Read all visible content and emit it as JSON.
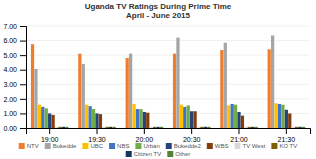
{
  "chart_data": {
    "type": "bar",
    "title": "Uganda TV Ratings During Prime Time\nApril - June 2015",
    "categories": [
      "19:00",
      "19:30",
      "20:00",
      "20:30",
      "21:00",
      "21:30"
    ],
    "series": [
      {
        "name": "NTV",
        "color": "#ed7d31",
        "values": [
          5.75,
          5.1,
          4.8,
          5.1,
          5.35,
          5.4
        ]
      },
      {
        "name": "Bukedde",
        "color": "#a5a5a5",
        "values": [
          4.05,
          4.4,
          5.1,
          6.2,
          5.85,
          6.35
        ]
      },
      {
        "name": "UBC",
        "color": "#ffc000",
        "values": [
          1.6,
          1.6,
          1.65,
          1.6,
          1.55,
          1.7
        ]
      },
      {
        "name": "NBS",
        "color": "#4472c4",
        "values": [
          1.45,
          1.5,
          1.3,
          1.45,
          1.65,
          1.65
        ]
      },
      {
        "name": "Urban",
        "color": "#70ad47",
        "values": [
          1.35,
          1.3,
          1.3,
          1.55,
          1.6,
          1.6
        ]
      },
      {
        "name": "Bukedde2",
        "color": "#264478",
        "values": [
          1.0,
          1.0,
          1.1,
          1.15,
          1.1,
          1.25
        ]
      },
      {
        "name": "WBS",
        "color": "#843c0c",
        "values": [
          0.9,
          0.95,
          1.05,
          1.15,
          0.85,
          1.0
        ]
      },
      {
        "name": "TV West",
        "color": "#d9d9d9",
        "values": [
          0.08,
          0.08,
          0.08,
          0.08,
          0.08,
          0.08
        ]
      },
      {
        "name": "KO TV",
        "color": "#806000",
        "values": [
          0.08,
          0.08,
          0.08,
          0.08,
          0.08,
          0.08
        ]
      },
      {
        "name": "Citizen TV",
        "color": "#17375e",
        "values": [
          0.08,
          0.08,
          0.08,
          0.08,
          0.08,
          0.08
        ]
      },
      {
        "name": "Other",
        "color": "#548235",
        "values": [
          0.08,
          0.08,
          0.08,
          0.08,
          0.08,
          0.08
        ]
      }
    ],
    "ylim": [
      0.0,
      7.0
    ],
    "yticks": [
      {
        "value": 0.0,
        "label": "0.00"
      },
      {
        "value": 1.0,
        "label": "1.00"
      },
      {
        "value": 2.0,
        "label": "2.00"
      },
      {
        "value": 3.0,
        "label": "3.00"
      },
      {
        "value": 4.0,
        "label": "4.00"
      },
      {
        "value": 5.0,
        "label": "5.00"
      },
      {
        "value": 6.0,
        "label": "6.00"
      },
      {
        "value": 7.0,
        "label": "7.00"
      }
    ],
    "grid": true,
    "legend": "bottom"
  }
}
